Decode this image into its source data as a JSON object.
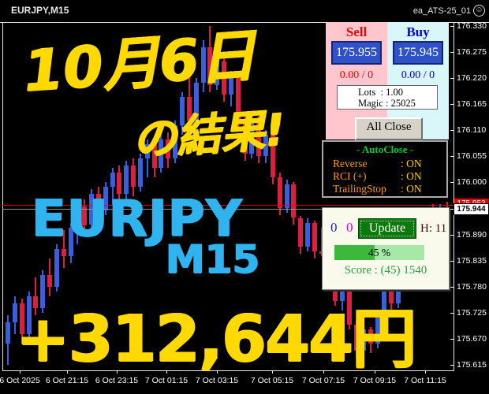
{
  "window": {
    "title": "EURJPY,M15",
    "ea_name": "ea_ATS-25_01",
    "smiley": "☺"
  },
  "overlays": {
    "date": "10月6日",
    "result": "の結果!",
    "symbol": "EURJPY",
    "timeframe": "M15",
    "profit": "+312,644円",
    "yellow": "#FFD900",
    "blue": "#2FB4F0"
  },
  "trade_panel": {
    "sell_label": "Sell",
    "buy_label": "Buy",
    "sell_price": "175.955",
    "buy_price": "175.945",
    "sell_stat": "0.00 / 0",
    "buy_stat": "0.00 / 0",
    "lots_line": "Lots  : 1.00",
    "magic_line": "Magic : 25025",
    "all_close_label": "All Close",
    "sell_color": "#f00000",
    "buy_color": "#0000e8",
    "button_blue": "#2f52c8"
  },
  "autoclose_panel": {
    "title": "- AutoClose -",
    "rows": [
      {
        "label": "Reverse",
        "value": ": ON"
      },
      {
        "label": "RCI (+)",
        "value": ": ON"
      },
      {
        "label": "TrailingStop",
        "value": ": ON"
      }
    ],
    "title_color": "#00cc33",
    "label_color": "#ff9c00",
    "value_color": "#ffd000"
  },
  "update_panel": {
    "count1": "0",
    "count2": "0",
    "button_label": "Update",
    "hold": "H: 11",
    "progress_pct": 45,
    "progress_label": "45 %",
    "score": "Score : (45) 1540",
    "button_green": "#0a7a0a",
    "fill_green": "#3db83d"
  },
  "price_axis": {
    "labels": [
      "176.330",
      "176.275",
      "176.220",
      "176.165",
      "176.110",
      "176.055",
      "176.000",
      "175.945",
      "175.890",
      "175.835",
      "175.780",
      "175.725",
      "175.670",
      "175.615"
    ],
    "ask": "175.953",
    "bid": "175.944"
  },
  "time_axis": {
    "labels": [
      "6 Oct 2025",
      "6 Oct 21:15",
      "6 Oct 23:15",
      "7 Oct 01:15",
      "7 Oct 03:15",
      "7 Oct 05:15",
      "7 Oct 07:15",
      "7 Oct 09:15",
      "7 Oct 11:15"
    ]
  },
  "chart_data": {
    "type": "candlestick",
    "symbol": "EURJPY",
    "timeframe": "M15",
    "price_range": [
      175.615,
      176.33
    ],
    "current_bid": 175.944,
    "current_ask": 175.953,
    "colors": {
      "bull": "#3a5fde",
      "bear": "#d82040"
    },
    "ohlc_note": "[open,high,low,close]",
    "candles": [
      [
        175.66,
        175.72,
        175.615,
        175.705
      ],
      [
        175.705,
        175.76,
        175.68,
        175.745
      ],
      [
        175.745,
        175.755,
        175.66,
        175.68
      ],
      [
        175.68,
        175.77,
        175.67,
        175.76
      ],
      [
        175.76,
        175.8,
        175.72,
        175.735
      ],
      [
        175.735,
        175.815,
        175.725,
        175.805
      ],
      [
        175.805,
        175.84,
        175.76,
        175.78
      ],
      [
        175.78,
        175.87,
        175.77,
        175.86
      ],
      [
        175.86,
        175.9,
        175.82,
        175.845
      ],
      [
        175.845,
        175.915,
        175.83,
        175.905
      ],
      [
        175.905,
        175.96,
        175.87,
        175.95
      ],
      [
        175.95,
        175.965,
        175.89,
        175.91
      ],
      [
        175.91,
        175.985,
        175.9,
        175.975
      ],
      [
        175.975,
        175.99,
        175.92,
        175.94
      ],
      [
        175.94,
        176.0,
        175.93,
        175.99
      ],
      [
        175.99,
        176.03,
        175.95,
        176.02
      ],
      [
        176.02,
        176.035,
        175.955,
        175.975
      ],
      [
        175.975,
        176.045,
        175.96,
        176.035
      ],
      [
        176.035,
        176.05,
        175.97,
        175.99
      ],
      [
        175.99,
        176.06,
        175.98,
        176.05
      ],
      [
        176.05,
        176.09,
        176.01,
        176.08
      ],
      [
        176.08,
        176.095,
        176.01,
        176.03
      ],
      [
        176.03,
        176.1,
        176.02,
        176.09
      ],
      [
        176.09,
        176.105,
        176.03,
        176.05
      ],
      [
        176.05,
        176.13,
        176.04,
        176.12
      ],
      [
        176.12,
        176.19,
        176.1,
        176.18
      ],
      [
        176.18,
        176.23,
        176.11,
        176.13
      ],
      [
        176.13,
        176.22,
        176.12,
        176.21
      ],
      [
        176.21,
        176.3,
        176.19,
        176.285
      ],
      [
        176.285,
        176.33,
        176.19,
        176.205
      ],
      [
        176.205,
        176.27,
        176.195,
        176.255
      ],
      [
        176.255,
        176.265,
        176.17,
        176.185
      ],
      [
        176.185,
        176.235,
        176.16,
        176.22
      ],
      [
        176.22,
        176.225,
        176.11,
        176.125
      ],
      [
        176.125,
        176.14,
        176.045,
        176.06
      ],
      [
        176.06,
        176.135,
        176.05,
        176.125
      ],
      [
        176.125,
        176.14,
        176.04,
        176.055
      ],
      [
        176.055,
        176.11,
        176.04,
        176.1
      ],
      [
        176.1,
        176.105,
        175.995,
        176.01
      ],
      [
        176.01,
        176.02,
        175.93,
        175.945
      ],
      [
        175.945,
        176.005,
        175.935,
        175.995
      ],
      [
        175.995,
        176.0,
        175.91,
        175.925
      ],
      [
        175.925,
        175.93,
        175.85,
        175.865
      ],
      [
        175.865,
        175.925,
        175.855,
        175.915
      ],
      [
        175.915,
        175.92,
        175.84,
        175.855
      ],
      [
        175.855,
        175.905,
        175.845,
        175.85
      ],
      [
        175.85,
        175.86,
        175.79,
        175.8
      ],
      [
        175.8,
        175.81,
        175.74,
        175.75
      ],
      [
        175.75,
        175.79,
        175.73,
        175.78
      ],
      [
        175.78,
        175.785,
        175.69,
        175.7
      ],
      [
        175.7,
        175.71,
        175.63,
        175.645
      ],
      [
        175.645,
        175.7,
        175.635,
        175.69
      ],
      [
        175.69,
        175.695,
        175.64,
        175.66
      ],
      [
        175.66,
        175.73,
        175.65,
        175.72
      ],
      [
        175.72,
        175.78,
        175.71,
        175.77
      ],
      [
        175.77,
        175.775,
        175.73,
        175.745
      ],
      [
        175.745,
        175.815,
        175.735,
        175.805
      ],
      [
        175.805,
        175.865,
        175.795,
        175.855
      ],
      [
        175.855,
        175.86,
        175.83,
        175.845
      ],
      [
        175.845,
        175.905,
        175.835,
        175.895
      ],
      [
        175.895,
        175.945,
        175.885,
        175.935
      ],
      [
        175.935,
        175.955,
        175.9,
        175.915
      ],
      [
        175.915,
        175.955,
        175.905,
        175.945
      ],
      [
        175.945,
        175.96,
        175.935,
        175.944
      ]
    ]
  }
}
